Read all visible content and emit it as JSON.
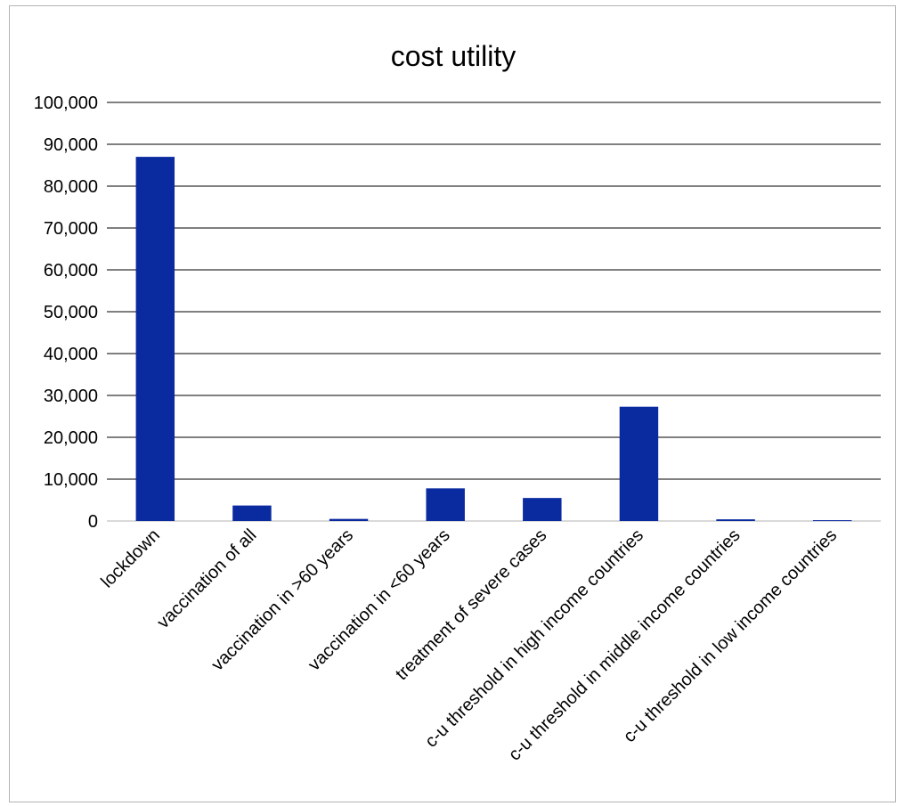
{
  "chart_data": {
    "type": "bar",
    "title": "cost utility",
    "xlabel": "",
    "ylabel": "",
    "categories": [
      "lockdown",
      "vaccination of all",
      "vaccination in >60 years",
      "vaccination in <60 years",
      "treatment of severe cases",
      "c-u threshold in high income countries",
      "c-u threshold in middle income countries",
      "c-u threshold in low income countries"
    ],
    "values": [
      87000,
      3700,
      500,
      7800,
      5500,
      27300,
      400,
      200
    ],
    "ylim": [
      0,
      100000
    ],
    "yticks": [
      "0",
      "10,000",
      "20,000",
      "30,000",
      "40,000",
      "50,000",
      "60,000",
      "70,000",
      "80,000",
      "90,000",
      "100,000"
    ],
    "grid": true,
    "legend": "none",
    "bar_color": "#0a2aa0"
  }
}
